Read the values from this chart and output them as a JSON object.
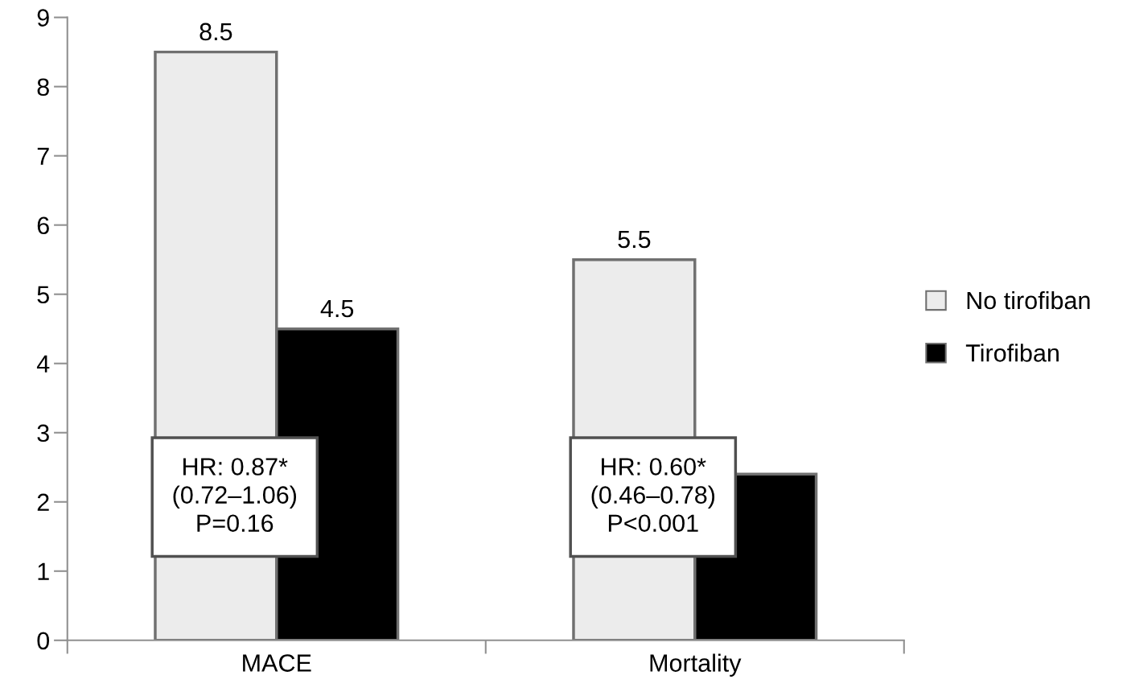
{
  "chart_data": {
    "type": "bar",
    "categories": [
      "MACE",
      "Mortality"
    ],
    "series": [
      {
        "name": "No tirofiban",
        "color": "#ececec",
        "values": [
          8.5,
          5.5
        ],
        "value_labels": [
          "8.5",
          "5.5"
        ]
      },
      {
        "name": "Tirofiban",
        "color": "#000000",
        "values": [
          4.5,
          2.4
        ],
        "value_labels": [
          "4.5",
          null
        ]
      }
    ],
    "ylim": [
      0,
      9
    ],
    "yticks": [
      0,
      1,
      2,
      3,
      4,
      5,
      6,
      7,
      8,
      9
    ],
    "grid": false,
    "legend": "right",
    "annotations": [
      "HR: 0.87*\n(0.72–1.06)\nP=0.16",
      "HR: 0.60*\n(0.46–0.78)\nP<0.001"
    ]
  }
}
